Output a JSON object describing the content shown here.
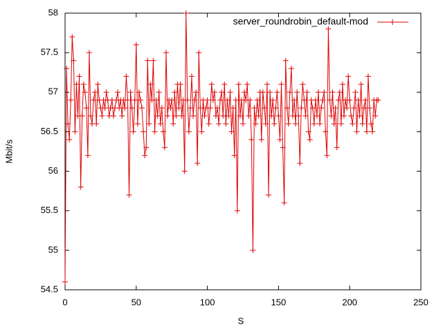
{
  "chart_data": {
    "type": "line",
    "xlabel": "S",
    "ylabel": "Mbit/s",
    "xlim": [
      0,
      250
    ],
    "xticks": [
      0,
      50,
      100,
      150,
      200,
      250
    ],
    "ylim": [
      54.5,
      58
    ],
    "yticks": [
      54.5,
      55,
      55.5,
      56,
      56.5,
      57,
      57.5,
      58
    ],
    "legend": "top-right",
    "x": [
      0,
      1,
      2,
      3,
      4,
      5,
      6,
      7,
      8,
      9,
      10,
      11,
      12,
      13,
      14,
      15,
      16,
      17,
      18,
      19,
      20,
      21,
      22,
      23,
      24,
      25,
      26,
      27,
      28,
      29,
      30,
      31,
      32,
      33,
      34,
      35,
      36,
      37,
      38,
      39,
      40,
      41,
      42,
      43,
      44,
      45,
      46,
      47,
      48,
      49,
      50,
      51,
      52,
      53,
      54,
      55,
      56,
      57,
      58,
      59,
      60,
      61,
      62,
      63,
      64,
      65,
      66,
      67,
      68,
      69,
      70,
      71,
      72,
      73,
      74,
      75,
      76,
      77,
      78,
      79,
      80,
      81,
      82,
      83,
      84,
      85,
      86,
      87,
      88,
      89,
      90,
      91,
      92,
      93,
      94,
      95,
      96,
      97,
      98,
      99,
      100,
      101,
      102,
      103,
      104,
      105,
      106,
      107,
      108,
      109,
      110,
      111,
      112,
      113,
      114,
      115,
      116,
      117,
      118,
      119,
      120,
      121,
      122,
      123,
      124,
      125,
      126,
      127,
      128,
      129,
      130,
      131,
      132,
      133,
      134,
      135,
      136,
      137,
      138,
      139,
      140,
      141,
      142,
      143,
      144,
      145,
      146,
      147,
      148,
      149,
      150,
      151,
      152,
      153,
      154,
      155,
      156,
      157,
      158,
      159,
      160,
      161,
      162,
      163,
      164,
      165,
      166,
      167,
      168,
      169,
      170,
      171,
      172,
      173,
      174,
      175,
      176,
      177,
      178,
      179,
      180,
      181,
      182,
      183,
      184,
      185,
      186,
      187,
      188,
      189,
      190,
      191,
      192,
      193,
      194,
      195,
      196,
      197,
      198,
      199,
      200,
      201,
      202,
      203,
      204,
      205,
      206,
      207,
      208,
      209,
      210,
      211,
      212,
      213,
      214,
      215,
      216,
      217,
      218,
      219,
      220
    ],
    "series": [
      {
        "name": "server_roundrobin_default-mod",
        "color": "#dd0000",
        "values": [
          54.6,
          57.3,
          56.6,
          56.4,
          56.9,
          57.7,
          57.4,
          56.5,
          57.1,
          56.7,
          57.2,
          55.8,
          56.7,
          57.1,
          57.0,
          56.8,
          56.2,
          57.5,
          56.7,
          56.6,
          56.9,
          57.0,
          56.6,
          57.1,
          56.9,
          56.8,
          56.7,
          56.9,
          56.8,
          57.0,
          56.9,
          56.7,
          56.8,
          56.9,
          56.7,
          56.8,
          56.9,
          57.0,
          56.8,
          56.9,
          56.7,
          56.9,
          56.8,
          57.2,
          56.9,
          55.7,
          57.0,
          56.8,
          56.5,
          56.9,
          57.6,
          56.6,
          57.0,
          56.9,
          56.8,
          56.5,
          56.2,
          56.3,
          57.4,
          56.6,
          57.1,
          56.9,
          57.4,
          56.5,
          56.9,
          56.7,
          57.0,
          56.6,
          56.8,
          56.5,
          56.3,
          57.5,
          56.7,
          56.9,
          56.8,
          56.9,
          56.6,
          57.0,
          56.7,
          57.1,
          56.8,
          57.1,
          56.7,
          56.9,
          56.0,
          58.0,
          56.9,
          56.5,
          56.8,
          57.2,
          56.7,
          56.9,
          57.0,
          56.1,
          57.5,
          56.8,
          56.5,
          56.9,
          56.7,
          56.8,
          56.9,
          56.6,
          56.8,
          57.1,
          56.9,
          57.0,
          56.7,
          56.8,
          56.6,
          56.9,
          57.0,
          56.7,
          57.1,
          56.6,
          56.9,
          56.7,
          57.0,
          56.5,
          56.8,
          56.2,
          56.9,
          55.5,
          57.1,
          56.7,
          56.9,
          56.6,
          57.0,
          56.9,
          57.1,
          56.7,
          56.9,
          56.4,
          55.0,
          56.8,
          56.6,
          56.9,
          56.7,
          57.0,
          56.4,
          57.0,
          56.8,
          56.6,
          57.1,
          55.7,
          57.0,
          56.7,
          56.9,
          56.6,
          56.8,
          57.0,
          56.7,
          56.4,
          57.1,
          56.3,
          55.6,
          57.4,
          56.8,
          56.6,
          57.0,
          57.3,
          56.7,
          56.9,
          56.6,
          57.0,
          56.7,
          56.1,
          56.8,
          57.1,
          56.9,
          56.7,
          57.0,
          56.5,
          56.4,
          56.9,
          56.8,
          56.6,
          56.9,
          56.7,
          57.0,
          56.6,
          56.8,
          56.9,
          57.0,
          56.5,
          56.2,
          57.8,
          56.9,
          56.7,
          57.0,
          56.6,
          56.8,
          56.3,
          56.9,
          57.0,
          56.6,
          57.1,
          56.7,
          56.9,
          56.8,
          57.2,
          56.9,
          56.7,
          56.6,
          56.8,
          57.0,
          56.5,
          56.9,
          56.7,
          57.1,
          56.6,
          56.8,
          56.9,
          56.5,
          57.2,
          56.8,
          56.6,
          56.5,
          56.9,
          56.7,
          56.9,
          56.9
        ]
      }
    ]
  }
}
